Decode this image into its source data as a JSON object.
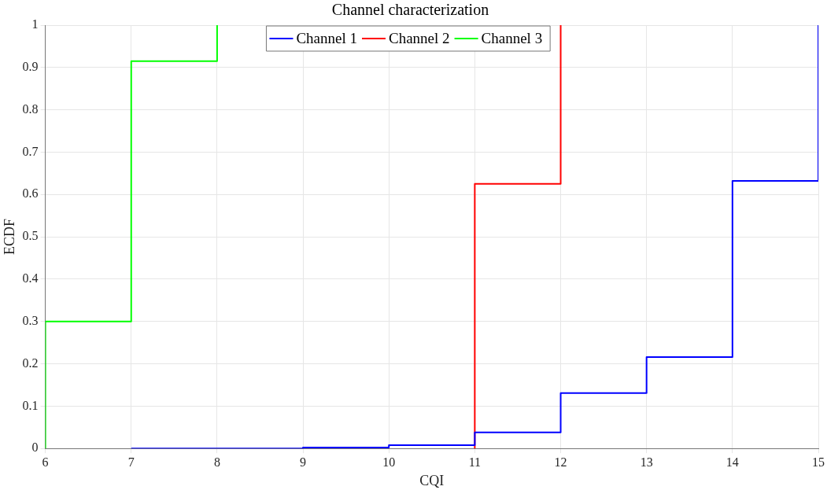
{
  "chart_data": {
    "type": "step",
    "title": "Channel characterization",
    "xlabel": "CQI",
    "ylabel": "ECDF",
    "series": [
      {
        "name": "Channel 1",
        "color": "#0000ff",
        "x": [
          7,
          8,
          9,
          10,
          11,
          12,
          13,
          14,
          15
        ],
        "values": [
          0,
          0,
          0.002,
          0.008,
          0.038,
          0.131,
          0.216,
          0.632,
          1
        ]
      },
      {
        "name": "Channel 2",
        "color": "#ff0000",
        "x": [
          11,
          11,
          12
        ],
        "values": [
          0,
          0.625,
          1
        ]
      },
      {
        "name": "Channel 3",
        "color": "#00ff00",
        "x": [
          6,
          6,
          7,
          8
        ],
        "values": [
          0,
          0.3,
          0.915,
          1
        ]
      }
    ],
    "xlim": [
      6,
      15
    ],
    "xticks": [
      6,
      7,
      8,
      9,
      10,
      11,
      12,
      13,
      14,
      15
    ],
    "ylim": [
      0,
      1
    ],
    "yticks": [
      0,
      0.1,
      0.2,
      0.3,
      0.4,
      0.5,
      0.6,
      0.7,
      0.8,
      0.9,
      1
    ],
    "grid": true,
    "legend": "top",
    "marker": "none",
    "line_style": "solid"
  }
}
